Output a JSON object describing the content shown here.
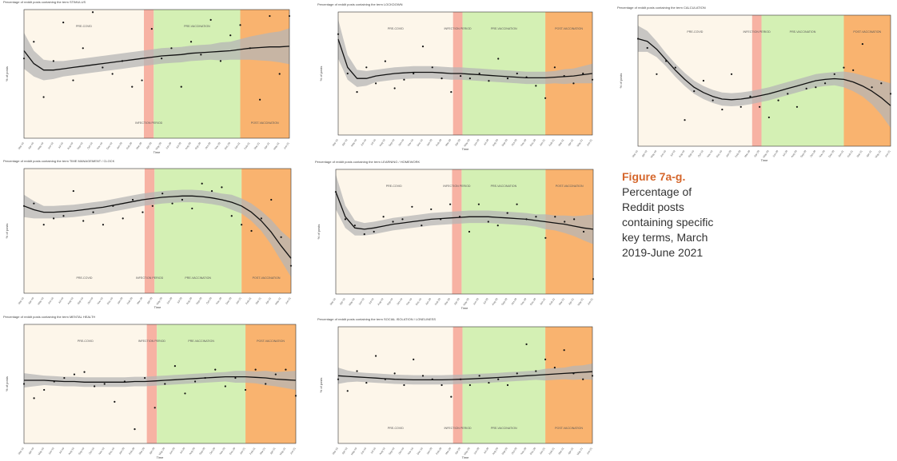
{
  "caption": {
    "title": "Figure 7a-g.",
    "lines": [
      "Percentage of",
      "Reddit posts",
      "containing specific",
      "key terms, March",
      "2019-June 2021"
    ]
  },
  "colors": {
    "pre_covid": "#fdf6ea",
    "infection_period": "#f7b2a3",
    "pre_vaccination": "#d4f0b4",
    "post_vaccination": "#f9b36f",
    "ci_band": "#b5b5b5",
    "trend_line": "#111111"
  },
  "chart_data": [
    {
      "type": "scatter",
      "title": "Percentage of reddit posts containing the term STIMULUS",
      "xlabel": "Time",
      "ylabel": "% of posts",
      "x": [
        "Mar-19",
        "Apr-19",
        "May-19",
        "Jun-19",
        "Jul-19",
        "Aug-19",
        "Sep-19",
        "Oct-19",
        "Nov-19",
        "Dec-19",
        "Jan-20",
        "Feb-20",
        "Mar-20",
        "Apr-20",
        "May-20",
        "Jun-20",
        "Jul-20",
        "Aug-20",
        "Sep-20",
        "Oct-20",
        "Nov-20",
        "Dec-20",
        "Jan-21",
        "Feb-21",
        "Mar-21",
        "Apr-21",
        "May-21",
        "Jun-21"
      ],
      "ylim": [
        0,
        1
      ],
      "points": [
        0.62,
        0.75,
        0.32,
        0.6,
        0.9,
        0.45,
        0.7,
        0.98,
        0.55,
        0.5,
        0.6,
        0.4,
        0.45,
        0.85,
        0.62,
        0.7,
        0.4,
        0.75,
        0.65,
        0.92,
        0.6,
        0.8,
        0.88,
        0.7,
        0.3,
        0.95,
        0.5,
        0.95
      ],
      "fit": [
        0.68,
        0.58,
        0.53,
        0.53,
        0.54,
        0.55,
        0.56,
        0.57,
        0.58,
        0.59,
        0.6,
        0.61,
        0.62,
        0.63,
        0.64,
        0.645,
        0.65,
        0.66,
        0.665,
        0.67,
        0.675,
        0.68,
        0.69,
        0.7,
        0.705,
        0.71,
        0.71,
        0.715
      ],
      "ci": [
        0.14,
        0.1,
        0.08,
        0.07,
        0.06,
        0.06,
        0.06,
        0.06,
        0.06,
        0.06,
        0.06,
        0.06,
        0.06,
        0.06,
        0.06,
        0.06,
        0.06,
        0.06,
        0.06,
        0.06,
        0.07,
        0.07,
        0.08,
        0.09,
        0.1,
        0.11,
        0.12,
        0.14
      ],
      "periods": [
        {
          "label": "PRE-COVID",
          "start": 0,
          "end": 12.2,
          "color": "pre_covid",
          "label_pos": "top"
        },
        {
          "label": "INFECTION PERIOD",
          "start": 12.2,
          "end": 13.2,
          "color": "infection_period",
          "label_pos": "bottom"
        },
        {
          "label": "PRE-VACCINATION",
          "start": 13.2,
          "end": 22.0,
          "color": "pre_vaccination",
          "label_pos": "top"
        },
        {
          "label": "POST-VACCINATION",
          "start": 22.0,
          "end": 27.5,
          "color": "post_vaccination",
          "label_pos": "bottom"
        }
      ]
    },
    {
      "type": "scatter",
      "title": "Percentage of reddit posts containing the term LOCKDOWN",
      "xlabel": "Time",
      "ylabel": "% of posts",
      "x": [
        "Mar-19",
        "Apr-19",
        "May-19",
        "Jun-19",
        "Jul-19",
        "Aug-19",
        "Sep-19",
        "Oct-19",
        "Nov-19",
        "Dec-19",
        "Jan-20",
        "Feb-20",
        "Mar-20",
        "Apr-20",
        "May-20",
        "Jun-20",
        "Jul-20",
        "Aug-20",
        "Sep-20",
        "Oct-20",
        "Nov-20",
        "Dec-20",
        "Jan-21",
        "Feb-21",
        "Mar-21",
        "Apr-21",
        "May-21",
        "Jun-21"
      ],
      "ylim": [
        0,
        1
      ],
      "points": [
        0.82,
        0.5,
        0.35,
        0.55,
        0.42,
        0.6,
        0.38,
        0.45,
        0.5,
        0.72,
        0.55,
        0.46,
        0.35,
        0.48,
        0.46,
        0.5,
        0.44,
        0.62,
        0.46,
        0.5,
        0.47,
        0.4,
        0.3,
        0.55,
        0.48,
        0.42,
        0.5,
        0.45
      ],
      "fit": [
        0.78,
        0.55,
        0.46,
        0.46,
        0.48,
        0.49,
        0.5,
        0.505,
        0.51,
        0.51,
        0.51,
        0.505,
        0.5,
        0.5,
        0.495,
        0.49,
        0.485,
        0.48,
        0.475,
        0.47,
        0.465,
        0.465,
        0.465,
        0.47,
        0.475,
        0.48,
        0.49,
        0.5
      ],
      "ci": [
        0.16,
        0.1,
        0.07,
        0.06,
        0.05,
        0.05,
        0.05,
        0.05,
        0.05,
        0.05,
        0.05,
        0.05,
        0.05,
        0.05,
        0.05,
        0.05,
        0.05,
        0.05,
        0.05,
        0.05,
        0.05,
        0.05,
        0.05,
        0.05,
        0.06,
        0.06,
        0.07,
        0.08
      ],
      "periods": [
        {
          "label": "PRE-COVID",
          "start": 0,
          "end": 12.2,
          "color": "pre_covid",
          "label_pos": "top"
        },
        {
          "label": "INFECTION PERIOD",
          "start": 12.2,
          "end": 13.2,
          "color": "infection_period",
          "label_pos": "top"
        },
        {
          "label": "PRE-VACCINATION",
          "start": 13.2,
          "end": 22.0,
          "color": "pre_vaccination",
          "label_pos": "top"
        },
        {
          "label": "POST-VACCINATION",
          "start": 22.0,
          "end": 27.5,
          "color": "post_vaccination",
          "label_pos": "top"
        }
      ]
    },
    {
      "type": "scatter",
      "title": "Percentage of reddit posts containing the term CALCULATION",
      "xlabel": "Time",
      "ylabel": "% of posts",
      "x": [
        "Mar-19",
        "Apr-19",
        "May-19",
        "Jun-19",
        "Jul-19",
        "Aug-19",
        "Sep-19",
        "Oct-19",
        "Nov-19",
        "Dec-19",
        "Jan-20",
        "Feb-20",
        "Mar-20",
        "Apr-20",
        "May-20",
        "Jun-20",
        "Jul-20",
        "Aug-20",
        "Sep-20",
        "Oct-20",
        "Nov-20",
        "Dec-20",
        "Jan-21",
        "Feb-21",
        "Mar-21",
        "Apr-21",
        "May-21",
        "Jun-21"
      ],
      "ylim": [
        0,
        1
      ],
      "points": [
        0.82,
        0.75,
        0.55,
        0.65,
        0.6,
        0.2,
        0.42,
        0.5,
        0.35,
        0.28,
        0.55,
        0.3,
        0.38,
        0.3,
        0.22,
        0.35,
        0.4,
        0.3,
        0.44,
        0.45,
        0.48,
        0.55,
        0.6,
        0.58,
        0.78,
        0.45,
        0.48,
        0.4
      ],
      "fit": [
        0.82,
        0.8,
        0.74,
        0.66,
        0.58,
        0.51,
        0.45,
        0.41,
        0.38,
        0.36,
        0.355,
        0.36,
        0.37,
        0.385,
        0.4,
        0.42,
        0.44,
        0.46,
        0.48,
        0.5,
        0.51,
        0.515,
        0.51,
        0.49,
        0.46,
        0.42,
        0.37,
        0.31
      ],
      "ci": [
        0.1,
        0.08,
        0.06,
        0.05,
        0.05,
        0.05,
        0.05,
        0.05,
        0.05,
        0.05,
        0.05,
        0.05,
        0.05,
        0.05,
        0.05,
        0.05,
        0.05,
        0.05,
        0.05,
        0.05,
        0.05,
        0.05,
        0.06,
        0.07,
        0.08,
        0.1,
        0.13,
        0.17
      ],
      "periods": [
        {
          "label": "PRE-COVID",
          "start": 0,
          "end": 12.2,
          "color": "pre_covid",
          "label_pos": "top"
        },
        {
          "label": "INFECTION PERIOD",
          "start": 12.2,
          "end": 13.2,
          "color": "infection_period",
          "label_pos": "top"
        },
        {
          "label": "PRE-VACCINATION",
          "start": 13.2,
          "end": 22.0,
          "color": "pre_vaccination",
          "label_pos": "top"
        },
        {
          "label": "POST-VACCINATION",
          "start": 22.0,
          "end": 27.5,
          "color": "post_vaccination",
          "label_pos": "top"
        }
      ]
    },
    {
      "type": "scatter",
      "title": "Percentage of reddit posts containing the term TIME MANAGEMENT / CLOCK",
      "xlabel": "Time",
      "ylabel": "% of posts",
      "x": [
        "Mar-19",
        "Apr-19",
        "May-19",
        "Jun-19",
        "Jul-19",
        "Aug-19",
        "Sep-19",
        "Oct-19",
        "Nov-19",
        "Dec-19",
        "Jan-20",
        "Feb-20",
        "Mar-20",
        "Apr-20",
        "May-20",
        "Jun-20",
        "Jul-20",
        "Aug-20",
        "Sep-20",
        "Oct-20",
        "Nov-20",
        "Dec-20",
        "Jan-21",
        "Feb-21",
        "Mar-21",
        "Apr-21",
        "May-21",
        "Jun-21"
      ],
      "ylim": [
        0,
        1
      ],
      "points": [
        0.7,
        0.72,
        0.55,
        0.6,
        0.62,
        0.82,
        0.58,
        0.65,
        0.55,
        0.7,
        0.6,
        0.75,
        0.65,
        0.7,
        0.8,
        0.72,
        0.75,
        0.68,
        0.88,
        0.82,
        0.85,
        0.62,
        0.55,
        0.5,
        0.6,
        0.75,
        0.45,
        0.22
      ],
      "fit": [
        0.7,
        0.67,
        0.65,
        0.65,
        0.655,
        0.66,
        0.67,
        0.68,
        0.69,
        0.705,
        0.72,
        0.735,
        0.75,
        0.76,
        0.77,
        0.775,
        0.78,
        0.78,
        0.775,
        0.765,
        0.75,
        0.73,
        0.7,
        0.65,
        0.58,
        0.49,
        0.38,
        0.28
      ],
      "ci": [
        0.09,
        0.07,
        0.05,
        0.05,
        0.05,
        0.05,
        0.05,
        0.05,
        0.05,
        0.05,
        0.05,
        0.05,
        0.05,
        0.05,
        0.05,
        0.05,
        0.05,
        0.05,
        0.05,
        0.05,
        0.05,
        0.06,
        0.06,
        0.07,
        0.08,
        0.1,
        0.12,
        0.15
      ],
      "periods": [
        {
          "label": "PRE-COVID",
          "start": 0,
          "end": 12.2,
          "color": "pre_covid",
          "label_pos": "bottom"
        },
        {
          "label": "INFECTION PERIOD",
          "start": 12.2,
          "end": 13.2,
          "color": "infection_period",
          "label_pos": "bottom"
        },
        {
          "label": "PRE-VACCINATION",
          "start": 13.2,
          "end": 22.0,
          "color": "pre_vaccination",
          "label_pos": "bottom"
        },
        {
          "label": "POST-VACCINATION",
          "start": 22.0,
          "end": 27.5,
          "color": "post_vaccination",
          "label_pos": "bottom"
        }
      ]
    },
    {
      "type": "scatter",
      "title": "Percentage of reddit posts containing the term LEARNING / HOMEWORK",
      "xlabel": "Time",
      "ylabel": "% of posts",
      "x": [
        "Mar-19",
        "Apr-19",
        "May-19",
        "Jun-19",
        "Jul-19",
        "Aug-19",
        "Sep-19",
        "Oct-19",
        "Nov-19",
        "Dec-19",
        "Jan-20",
        "Feb-20",
        "Mar-20",
        "Apr-20",
        "May-20",
        "Jun-20",
        "Jul-20",
        "Aug-20",
        "Sep-20",
        "Oct-20",
        "Nov-20",
        "Dec-20",
        "Jan-21",
        "Feb-21",
        "Mar-21",
        "Apr-21",
        "May-21",
        "Jun-21"
      ],
      "ylim": [
        0,
        1
      ],
      "points": [
        0.82,
        0.6,
        0.55,
        0.48,
        0.5,
        0.62,
        0.58,
        0.6,
        0.7,
        0.55,
        0.68,
        0.6,
        0.72,
        0.62,
        0.5,
        0.72,
        0.58,
        0.55,
        0.65,
        0.72,
        0.6,
        0.62,
        0.45,
        0.62,
        0.58,
        0.6,
        0.5,
        0.12
      ],
      "fit": [
        0.82,
        0.62,
        0.53,
        0.52,
        0.53,
        0.545,
        0.56,
        0.57,
        0.58,
        0.59,
        0.6,
        0.605,
        0.61,
        0.615,
        0.62,
        0.62,
        0.62,
        0.615,
        0.61,
        0.605,
        0.6,
        0.59,
        0.58,
        0.57,
        0.56,
        0.545,
        0.53,
        0.52
      ],
      "ci": [
        0.14,
        0.09,
        0.06,
        0.05,
        0.05,
        0.05,
        0.05,
        0.05,
        0.05,
        0.05,
        0.05,
        0.05,
        0.05,
        0.05,
        0.05,
        0.05,
        0.05,
        0.05,
        0.05,
        0.05,
        0.05,
        0.05,
        0.06,
        0.06,
        0.07,
        0.08,
        0.1,
        0.12
      ],
      "periods": [
        {
          "label": "PRE-COVID",
          "start": 0,
          "end": 12.2,
          "color": "pre_covid",
          "label_pos": "top"
        },
        {
          "label": "INFECTION PERIOD",
          "start": 12.2,
          "end": 13.2,
          "color": "infection_period",
          "label_pos": "top"
        },
        {
          "label": "PRE-VACCINATION",
          "start": 13.2,
          "end": 22.0,
          "color": "pre_vaccination",
          "label_pos": "top"
        },
        {
          "label": "POST-VACCINATION",
          "start": 22.0,
          "end": 27.5,
          "color": "post_vaccination",
          "label_pos": "top"
        }
      ]
    },
    {
      "type": "scatter",
      "title": "Percentage of reddit posts containing the term MENTAL HEALTH",
      "xlabel": "Time",
      "ylabel": "% of posts",
      "x": [
        "Mar-19",
        "Apr-19",
        "May-19",
        "Jun-19",
        "Jul-19",
        "Aug-19",
        "Sep-19",
        "Oct-19",
        "Nov-19",
        "Dec-19",
        "Jan-20",
        "Feb-20",
        "Mar-20",
        "Apr-20",
        "May-20",
        "Jun-20",
        "Jul-20",
        "Aug-20",
        "Sep-20",
        "Oct-20",
        "Nov-20",
        "Dec-20",
        "Jan-21",
        "Feb-21",
        "Mar-21",
        "Apr-21",
        "May-21",
        "Jun-21"
      ],
      "ylim": [
        0,
        1
      ],
      "points": [
        0.5,
        0.38,
        0.45,
        0.52,
        0.55,
        0.58,
        0.6,
        0.48,
        0.5,
        0.35,
        0.52,
        0.12,
        0.55,
        0.3,
        0.5,
        0.65,
        0.42,
        0.52,
        0.55,
        0.62,
        0.48,
        0.55,
        0.45,
        0.62,
        0.5,
        0.58,
        0.62,
        0.4
      ],
      "fit": [
        0.53,
        0.53,
        0.53,
        0.525,
        0.52,
        0.52,
        0.515,
        0.515,
        0.515,
        0.515,
        0.515,
        0.52,
        0.52,
        0.525,
        0.53,
        0.535,
        0.54,
        0.545,
        0.55,
        0.555,
        0.56,
        0.56,
        0.56,
        0.555,
        0.55,
        0.54,
        0.535,
        0.53
      ],
      "ci": [
        0.06,
        0.05,
        0.04,
        0.04,
        0.04,
        0.04,
        0.04,
        0.04,
        0.04,
        0.04,
        0.04,
        0.04,
        0.04,
        0.04,
        0.04,
        0.04,
        0.04,
        0.04,
        0.04,
        0.04,
        0.04,
        0.05,
        0.05,
        0.05,
        0.06,
        0.06,
        0.07,
        0.08
      ],
      "periods": [
        {
          "label": "PRE-COVID",
          "start": 0,
          "end": 12.2,
          "color": "pre_covid",
          "label_pos": "top"
        },
        {
          "label": "INFECTION PERIOD",
          "start": 12.2,
          "end": 13.2,
          "color": "infection_period",
          "label_pos": "top"
        },
        {
          "label": "PRE-VACCINATION",
          "start": 13.2,
          "end": 22.0,
          "color": "pre_vaccination",
          "label_pos": "top"
        },
        {
          "label": "POST-VACCINATION",
          "start": 22.0,
          "end": 27.5,
          "color": "post_vaccination",
          "label_pos": "top"
        }
      ]
    },
    {
      "type": "scatter",
      "title": "Percentage of reddit posts containing the term SOCIAL ISOLATION / LONELINESS",
      "xlabel": "Time",
      "ylabel": "% of posts",
      "x": [
        "Mar-19",
        "Apr-19",
        "May-19",
        "Jun-19",
        "Jul-19",
        "Aug-19",
        "Sep-19",
        "Oct-19",
        "Nov-19",
        "Dec-19",
        "Jan-20",
        "Feb-20",
        "Mar-20",
        "Apr-20",
        "May-20",
        "Jun-20",
        "Jul-20",
        "Aug-20",
        "Sep-20",
        "Oct-20",
        "Nov-20",
        "Dec-20",
        "Jan-21",
        "Feb-21",
        "Mar-21",
        "Apr-21",
        "May-21",
        "Jun-21"
      ],
      "ylim": [
        0,
        1
      ],
      "points": [
        0.55,
        0.45,
        0.62,
        0.52,
        0.75,
        0.55,
        0.6,
        0.5,
        0.72,
        0.58,
        0.55,
        0.5,
        0.4,
        0.55,
        0.5,
        0.58,
        0.52,
        0.55,
        0.5,
        0.6,
        0.85,
        0.62,
        0.72,
        0.65,
        0.8,
        0.6,
        0.55,
        0.58
      ],
      "fit": [
        0.58,
        0.575,
        0.57,
        0.565,
        0.56,
        0.555,
        0.55,
        0.548,
        0.545,
        0.545,
        0.545,
        0.545,
        0.547,
        0.55,
        0.553,
        0.557,
        0.56,
        0.565,
        0.57,
        0.575,
        0.58,
        0.585,
        0.59,
        0.595,
        0.6,
        0.605,
        0.61,
        0.615
      ],
      "ci": [
        0.07,
        0.05,
        0.04,
        0.04,
        0.04,
        0.04,
        0.04,
        0.04,
        0.04,
        0.04,
        0.04,
        0.04,
        0.04,
        0.04,
        0.04,
        0.04,
        0.04,
        0.04,
        0.04,
        0.04,
        0.04,
        0.04,
        0.05,
        0.05,
        0.05,
        0.06,
        0.06,
        0.07
      ],
      "periods": [
        {
          "label": "PRE-COVID",
          "start": 0,
          "end": 12.2,
          "color": "pre_covid",
          "label_pos": "bottom"
        },
        {
          "label": "INFECTION PERIOD",
          "start": 12.2,
          "end": 13.2,
          "color": "infection_period",
          "label_pos": "bottom"
        },
        {
          "label": "PRE-VACCINATION",
          "start": 13.2,
          "end": 22.0,
          "color": "pre_vaccination",
          "label_pos": "bottom"
        },
        {
          "label": "POST-VACCINATION",
          "start": 22.0,
          "end": 27.5,
          "color": "post_vaccination",
          "label_pos": "bottom"
        }
      ]
    }
  ]
}
